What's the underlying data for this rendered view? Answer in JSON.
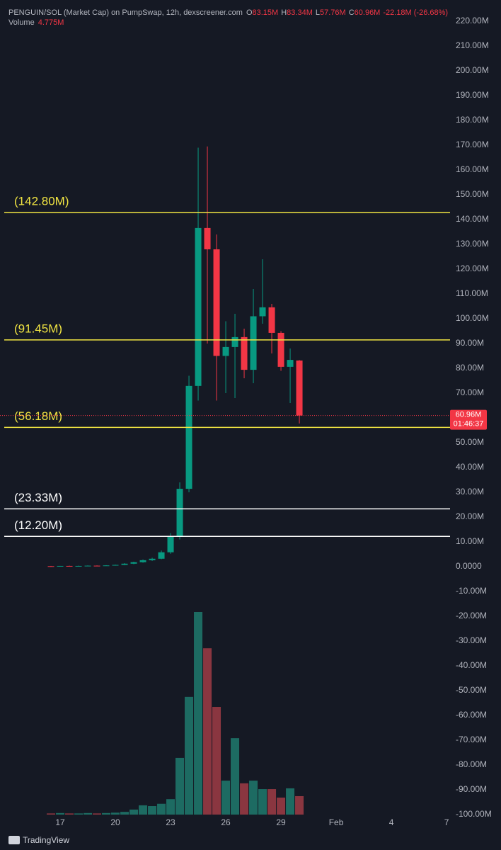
{
  "chart_data": {
    "type": "candlestick",
    "title": "PENGUIN/SOL (Market Cap) on PumpSwap, 12h, dexscreener.com",
    "ohlc_legend": {
      "o_label": "O",
      "open": "83.15M",
      "h_label": "H",
      "high": "83.34M",
      "l_label": "L",
      "low": "57.76M",
      "c_label": "C",
      "close": "60.96M",
      "change": "-22.18M (-26.68%)",
      "volume_label": "Volume",
      "volume": "4.775M"
    },
    "series": [
      {
        "x": [
          16.5,
          17,
          17.5,
          18,
          18.5,
          19,
          19.5,
          20,
          20.5,
          21,
          21.5,
          22,
          22.5,
          23,
          23.5,
          24,
          24.5,
          25,
          25.5,
          26,
          26.5,
          27,
          27.5,
          28,
          28.5,
          29,
          29.5,
          30
        ],
        "open": [
          0.2,
          0.1,
          0.3,
          0.2,
          0.3,
          0.4,
          0.3,
          0.5,
          0.7,
          1.2,
          1.8,
          2.6,
          3.2,
          5.8,
          12.2,
          31.4,
          72.9,
          136.6,
          128.0,
          85.0,
          88.6,
          92.6,
          79.4,
          101.0,
          104.6,
          94.3,
          80.6,
          83.15
        ],
        "high": [
          0.3,
          0.3,
          0.4,
          0.4,
          0.5,
          0.5,
          0.6,
          0.8,
          1.4,
          2.0,
          2.9,
          3.6,
          6.5,
          13.5,
          34.0,
          77.0,
          169.0,
          169.5,
          134.0,
          99.0,
          102.0,
          96.0,
          112.0,
          124.0,
          106.0,
          95.0,
          88.0,
          83.34
        ],
        "low": [
          0.1,
          0.1,
          0.2,
          0.2,
          0.3,
          0.3,
          0.3,
          0.4,
          0.6,
          1.0,
          1.6,
          2.3,
          3.0,
          5.2,
          11.0,
          30.0,
          67.0,
          90.0,
          67.0,
          70.0,
          68.0,
          76.0,
          74.0,
          98.0,
          86.0,
          79.0,
          66.0,
          57.76
        ],
        "close": [
          0.1,
          0.3,
          0.2,
          0.3,
          0.4,
          0.3,
          0.5,
          0.7,
          1.2,
          1.8,
          2.6,
          3.2,
          5.8,
          12.2,
          31.4,
          72.9,
          136.6,
          128.0,
          85.0,
          88.6,
          92.6,
          79.4,
          101.0,
          104.6,
          94.3,
          80.6,
          83.4,
          60.96
        ],
        "volume": [
          0.3,
          0.4,
          0.3,
          0.3,
          0.4,
          0.3,
          0.4,
          0.5,
          0.7,
          1.3,
          2.4,
          2.2,
          2.8,
          4.0,
          14.7,
          30.5,
          52.5,
          43.1,
          27.9,
          8.8,
          19.8,
          8.1,
          8.8,
          6.6,
          6.6,
          4.4,
          6.8,
          4.775
        ]
      }
    ],
    "up_color": "#089981",
    "down_color": "#f23645",
    "volume_up_color": "#1d6b62",
    "volume_down_color": "#8a3640",
    "ylim": [
      -102.86,
      225.71
    ],
    "yticks": [
      {
        "value": 220,
        "label": "220.00M"
      },
      {
        "value": 210,
        "label": "210.00M"
      },
      {
        "value": 200,
        "label": "200.00M"
      },
      {
        "value": 190,
        "label": "190.00M"
      },
      {
        "value": 180,
        "label": "180.00M"
      },
      {
        "value": 170,
        "label": "170.00M"
      },
      {
        "value": 160,
        "label": "160.00M"
      },
      {
        "value": 150,
        "label": "150.00M"
      },
      {
        "value": 140,
        "label": "140.00M"
      },
      {
        "value": 130,
        "label": "130.00M"
      },
      {
        "value": 120,
        "label": "120.00M"
      },
      {
        "value": 110,
        "label": "110.00M"
      },
      {
        "value": 100,
        "label": "100.00M"
      },
      {
        "value": 90,
        "label": "90.00M"
      },
      {
        "value": 80,
        "label": "80.00M"
      },
      {
        "value": 70,
        "label": "70.00M"
      },
      {
        "value": 60,
        "label": "60.00M"
      },
      {
        "value": 50,
        "label": "50.00M"
      },
      {
        "value": 40,
        "label": "40.00M"
      },
      {
        "value": 30,
        "label": "30.00M"
      },
      {
        "value": 20,
        "label": "20.00M"
      },
      {
        "value": 10,
        "label": "10.00M"
      },
      {
        "value": 0,
        "label": "0.0000"
      },
      {
        "value": -10,
        "label": "-10.00M"
      },
      {
        "value": -20,
        "label": "-20.00M"
      },
      {
        "value": -30,
        "label": "-30.00M"
      },
      {
        "value": -40,
        "label": "-40.00M"
      },
      {
        "value": -50,
        "label": "-50.00M"
      },
      {
        "value": -60,
        "label": "-60.00M"
      },
      {
        "value": -70,
        "label": "-70.00M"
      },
      {
        "value": -80,
        "label": "-80.00M"
      },
      {
        "value": -90,
        "label": "-90.00M"
      },
      {
        "value": -100,
        "label": "-100.00M"
      }
    ],
    "xlim": [
      13.73,
      38.19
    ],
    "xticks": [
      17,
      20,
      23,
      26,
      29,
      {
        "value": 32,
        "label": "Feb"
      },
      {
        "value": 35,
        "label": "4"
      },
      {
        "value": 38,
        "label": "7"
      }
    ],
    "levels": [
      {
        "value": 142.8,
        "label": "(142.80M)",
        "color": "#f0e442"
      },
      {
        "value": 91.45,
        "label": "(91.45M)",
        "color": "#f0e442"
      },
      {
        "value": 56.18,
        "label": "(56.18M)",
        "color": "#f0e442"
      },
      {
        "value": 23.33,
        "label": "(23.33M)",
        "color": "#ffffff"
      },
      {
        "value": 12.2,
        "label": "(12.20M)",
        "color": "#ffffff"
      }
    ],
    "price_tag": {
      "value": 60.96,
      "label": "60.96M",
      "countdown": "01:46:37"
    },
    "branding": "TradingView"
  }
}
